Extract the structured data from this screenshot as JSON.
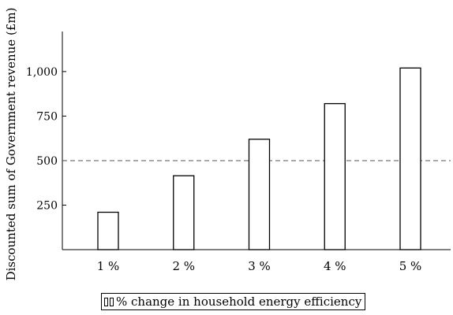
{
  "chart_data": {
    "type": "bar",
    "categories": [
      "1 %",
      "2 %",
      "3 %",
      "4 %",
      "5 %"
    ],
    "values": [
      210,
      415,
      620,
      820,
      1020
    ],
    "ylabel": "Discounted sum of Government revenue (£m)",
    "xlabel": "",
    "ylim": [
      0,
      1225
    ],
    "y_ticks": [
      250,
      500,
      750,
      1000
    ],
    "y_tick_labels": [
      "250",
      "500",
      "750",
      "1,000"
    ],
    "reference_line": {
      "value": 500,
      "style": "dashed"
    },
    "legend": {
      "placement": "bottom-center",
      "label": "% change in household energy efficiency"
    },
    "grid": false,
    "colors": {
      "bar_fill": "#ffffff",
      "bar_stroke": "#000000",
      "reference_line": "#555555"
    }
  }
}
